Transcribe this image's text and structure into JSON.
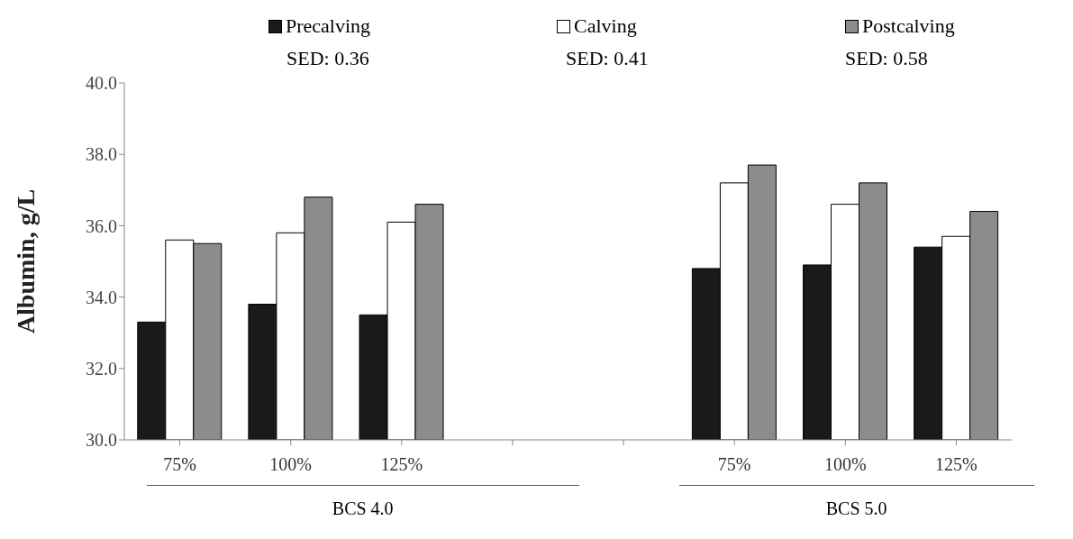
{
  "chart_data": {
    "type": "bar",
    "ylabel": "Albumin, g/L",
    "categories": [
      "75%",
      "100%",
      "125%",
      null,
      null,
      "75%",
      "100%",
      "125%"
    ],
    "series": [
      {
        "name": "Precalving",
        "color": "#1a1a1a",
        "values": [
          33.3,
          33.8,
          33.5,
          null,
          null,
          34.8,
          34.9,
          35.4
        ]
      },
      {
        "name": "Calving",
        "color": "#ffffff",
        "values": [
          35.6,
          35.8,
          36.1,
          null,
          null,
          37.2,
          36.6,
          35.7
        ]
      },
      {
        "name": "Postcalving",
        "color": "#8c8c8c",
        "values": [
          35.5,
          36.8,
          36.6,
          null,
          null,
          37.7,
          37.2,
          36.4
        ]
      }
    ],
    "ylim": [
      30,
      40
    ],
    "yticks": [
      {
        "value": 30,
        "label": "30.0"
      },
      {
        "value": 32,
        "label": "32.0"
      },
      {
        "value": 34,
        "label": "34.0"
      },
      {
        "value": 36,
        "label": "36.0"
      },
      {
        "value": 38,
        "label": "38.0"
      },
      {
        "value": 40,
        "label": "40.0"
      }
    ],
    "annotations": [
      "SED: 0.36",
      "SED: 0.41",
      "SED: 0.58",
      "BCS 4.0",
      "BCS 5.0"
    ],
    "grid": false,
    "legend": "top"
  }
}
